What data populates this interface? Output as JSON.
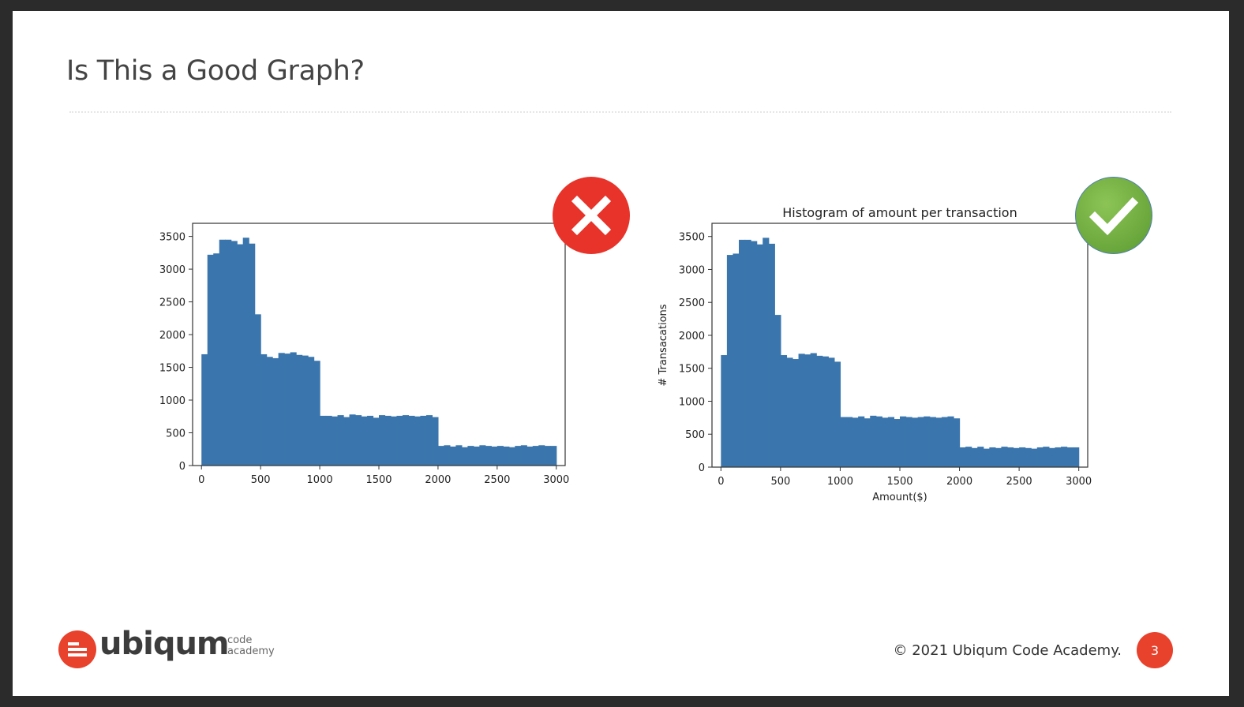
{
  "slide": {
    "title": "Is This a Good Graph?",
    "footer_copyright": "© 2021 Ubiqum Code Academy.",
    "page_number": "3",
    "logo": {
      "word": "ubiqum",
      "sub_line1": "code",
      "sub_line2": "academy"
    }
  },
  "colors": {
    "bar": "#3a76ad",
    "bad_badge": "#e8332a",
    "good_badge": "#6fae3c",
    "page_badge": "#e8412c"
  },
  "badges": {
    "left_icon": "cross-icon",
    "right_icon": "checkmark-icon"
  },
  "chart_data": [
    {
      "type": "bar",
      "title": "",
      "xlabel": "",
      "ylabel": "",
      "xlim": [
        -75,
        3075
      ],
      "ylim": [
        0,
        3700
      ],
      "xticks": [
        0,
        500,
        1000,
        1500,
        2000,
        2500,
        3000
      ],
      "yticks": [
        0,
        500,
        1000,
        1500,
        2000,
        2500,
        3000,
        3500
      ],
      "bin_width": 50,
      "bin_start": 0,
      "values": [
        1700,
        3220,
        3240,
        3450,
        3450,
        3430,
        3380,
        3480,
        3390,
        2310,
        1700,
        1660,
        1640,
        1720,
        1710,
        1730,
        1690,
        1680,
        1660,
        1600,
        760,
        760,
        750,
        770,
        740,
        780,
        770,
        750,
        760,
        730,
        770,
        760,
        750,
        760,
        770,
        760,
        750,
        760,
        770,
        740,
        300,
        310,
        290,
        310,
        280,
        300,
        290,
        310,
        300,
        290,
        300,
        290,
        280,
        300,
        310,
        290,
        300,
        310,
        300,
        300
      ]
    },
    {
      "type": "bar",
      "title": "Histogram of amount per transaction",
      "xlabel": "Amount($)",
      "ylabel": "# Transacations",
      "xlim": [
        -75,
        3075
      ],
      "ylim": [
        0,
        3700
      ],
      "xticks": [
        0,
        500,
        1000,
        1500,
        2000,
        2500,
        3000
      ],
      "yticks": [
        0,
        500,
        1000,
        1500,
        2000,
        2500,
        3000,
        3500
      ],
      "bin_width": 50,
      "bin_start": 0,
      "values": [
        1700,
        3220,
        3240,
        3450,
        3450,
        3430,
        3380,
        3480,
        3390,
        2310,
        1700,
        1660,
        1640,
        1720,
        1710,
        1730,
        1690,
        1680,
        1660,
        1600,
        760,
        760,
        750,
        770,
        740,
        780,
        770,
        750,
        760,
        730,
        770,
        760,
        750,
        760,
        770,
        760,
        750,
        760,
        770,
        740,
        300,
        310,
        290,
        310,
        280,
        300,
        290,
        310,
        300,
        290,
        300,
        290,
        280,
        300,
        310,
        290,
        300,
        310,
        300,
        300
      ]
    }
  ]
}
